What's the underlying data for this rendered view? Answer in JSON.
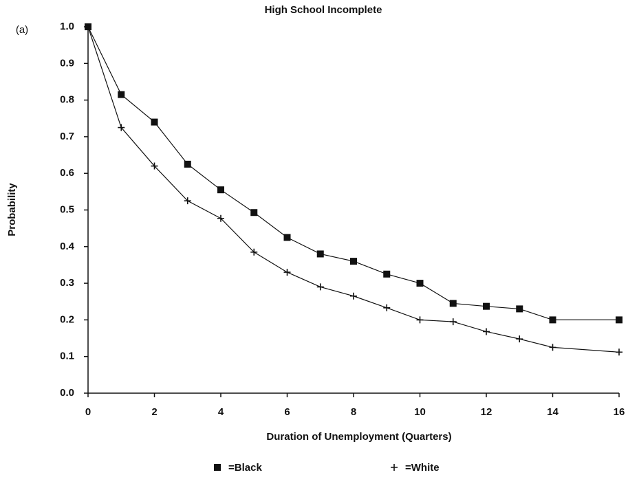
{
  "chart_data": {
    "type": "line",
    "title": "High School Incomplete",
    "annotation": "(a)",
    "xlabel": "Duration of Unemployment (Quarters)",
    "ylabel": "Probability",
    "series": [
      {
        "name": "=Black",
        "color": "#111111",
        "marker": "square",
        "x": [
          0,
          1,
          2,
          3,
          4,
          5,
          6,
          7,
          8,
          9,
          10,
          11,
          12,
          13,
          14,
          16
        ],
        "values": [
          1.0,
          0.815,
          0.74,
          0.625,
          0.555,
          0.493,
          0.425,
          0.38,
          0.36,
          0.325,
          0.3,
          0.245,
          0.237,
          0.23,
          0.2,
          0.2
        ]
      },
      {
        "name": "=White",
        "color": "#111111",
        "marker": "plus",
        "x": [
          0,
          1,
          2,
          3,
          4,
          5,
          6,
          7,
          8,
          9,
          10,
          11,
          12,
          13,
          14,
          16
        ],
        "values": [
          1.0,
          0.725,
          0.62,
          0.525,
          0.477,
          0.385,
          0.33,
          0.29,
          0.265,
          0.233,
          0.2,
          0.195,
          0.168,
          0.148,
          0.125,
          0.112
        ]
      }
    ],
    "xlim": [
      0,
      16
    ],
    "xticks": [
      0,
      2,
      4,
      6,
      8,
      10,
      12,
      14,
      16
    ],
    "ylim": [
      0,
      1
    ],
    "yticks": [
      {
        "value": 0,
        "label": "0.0"
      },
      0.1,
      0.2,
      0.3,
      0.4,
      0.5,
      0.6,
      0.7,
      0.8,
      0.9,
      {
        "value": 1,
        "label": "1.0"
      }
    ],
    "grid": false
  }
}
